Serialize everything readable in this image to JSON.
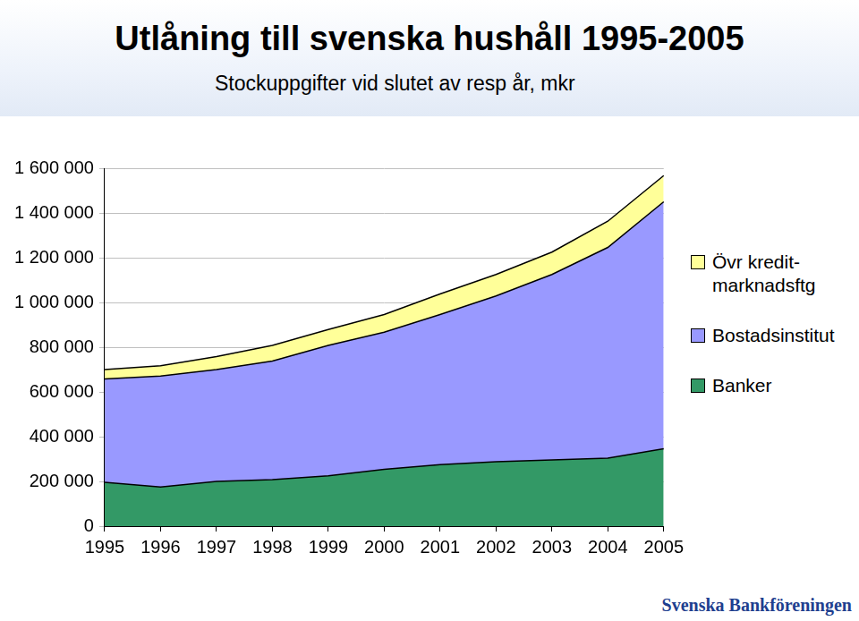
{
  "chart_data": {
    "type": "area",
    "title": "Utlåning till svenska hushåll 1995-2005",
    "subtitle": "Stockuppgifter vid slutet av resp år, mkr",
    "source": "Svenska Bankföreningen",
    "categories": [
      "1995",
      "1996",
      "1997",
      "1998",
      "1999",
      "2000",
      "2001",
      "2002",
      "2003",
      "2004",
      "2005"
    ],
    "series": [
      {
        "name": "Banker",
        "color": "#339966",
        "values": [
          196000,
          175000,
          200000,
          208000,
          225000,
          254000,
          275000,
          288000,
          296000,
          304000,
          346000
        ]
      },
      {
        "name": "Bostadsinstitut",
        "color": "#9999ff",
        "values": [
          462000,
          496000,
          500000,
          530000,
          583000,
          613000,
          671000,
          741000,
          829000,
          942000,
          1104000
        ]
      },
      {
        "name": "Övr kredit-marknadsftg",
        "color": "#ffff99",
        "values": [
          42000,
          46000,
          58000,
          70000,
          71000,
          79000,
          92000,
          96000,
          100000,
          117000,
          117000
        ]
      }
    ],
    "stacked": true,
    "ylim": [
      0,
      1600000
    ],
    "yticks": [
      0,
      {
        "value": 200000,
        "label": "200 000"
      },
      {
        "value": 400000,
        "label": "400 000"
      },
      {
        "value": 600000,
        "label": "600 000"
      },
      {
        "value": 800000,
        "label": "800 000"
      },
      {
        "value": 1000000,
        "label": "1 000 000"
      },
      {
        "value": 1200000,
        "label": "1 200 000"
      },
      {
        "value": 1400000,
        "label": "1 400 000"
      },
      {
        "value": 1600000,
        "label": "1 600 000"
      }
    ],
    "grid": true,
    "legend": "right"
  }
}
